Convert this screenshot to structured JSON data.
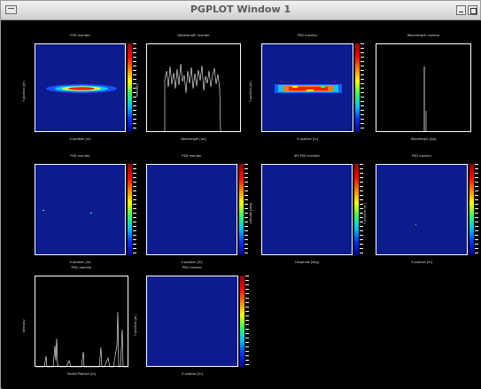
{
  "window": {
    "title": "PGPLOT Window 1"
  },
  "panels": {
    "p1": {
      "title": "PSD monitor",
      "xlabel": "X position [m]",
      "ylabel": "Y position [m]"
    },
    "p2": {
      "title": "Wavelength monitor",
      "xlabel": "Wavelength [AA]",
      "ylabel": "Intensity"
    },
    "p3": {
      "title": "PSD monitor",
      "xlabel": "X position [m]",
      "ylabel": "Y position [m]"
    },
    "p4": {
      "title": "Wavelength monitor",
      "xlabel": "Wavelength [AA]",
      "ylabel": ""
    },
    "p5": {
      "title": "PSD monitor",
      "xlabel": "X position [m]",
      "ylabel": ""
    },
    "p6": {
      "title": "PSD monitor",
      "xlabel": "X position [m]",
      "ylabel": ""
    },
    "p7": {
      "title": "4PI PSD monitor",
      "xlabel": "Longitude [deg]",
      "ylabel": "Latitude [deg]"
    },
    "p8": {
      "title": "PSD monitor",
      "xlabel": "X position [m]",
      "ylabel": "Y position [m]"
    },
    "p9": {
      "title": "PSD_monitor",
      "xlabel": "Radial Position [m]",
      "ylabel": "Intensity"
    },
    "p10": {
      "title": "PSD monitor",
      "xlabel": "X position [m]",
      "ylabel": "Y position [m]"
    }
  },
  "colors": {
    "background": "#000000",
    "plot_bg": "#0d1c8c",
    "axis": "#ffffff"
  }
}
